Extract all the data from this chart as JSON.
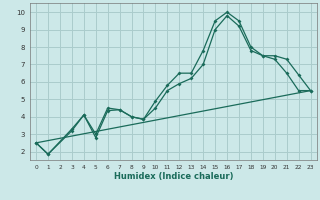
{
  "xlabel": "Humidex (Indice chaleur)",
  "bg_color": "#cce8e8",
  "grid_color": "#aacccc",
  "line_color": "#1a6b5a",
  "xlim": [
    -0.5,
    23.5
  ],
  "ylim": [
    1.5,
    10.5
  ],
  "xticks": [
    0,
    1,
    2,
    3,
    4,
    5,
    6,
    7,
    8,
    9,
    10,
    11,
    12,
    13,
    14,
    15,
    16,
    17,
    18,
    19,
    20,
    21,
    22,
    23
  ],
  "yticks": [
    2,
    3,
    4,
    5,
    6,
    7,
    8,
    9,
    10
  ],
  "line1_x": [
    0,
    1,
    3,
    4,
    5,
    6,
    7,
    8,
    9,
    10,
    11,
    12,
    13,
    14,
    15,
    16,
    17,
    18,
    19,
    20,
    21,
    22,
    23
  ],
  "line1_y": [
    2.5,
    1.85,
    3.2,
    4.1,
    2.8,
    4.35,
    4.4,
    4.0,
    3.85,
    4.9,
    5.8,
    6.5,
    6.5,
    7.8,
    9.5,
    10.0,
    9.5,
    8.0,
    7.5,
    7.3,
    6.5,
    5.5,
    5.5
  ],
  "line2_x": [
    0,
    1,
    3,
    4,
    5,
    6,
    7,
    8,
    9,
    10,
    11,
    12,
    13,
    14,
    15,
    16,
    17,
    18,
    19,
    20,
    21,
    22,
    23
  ],
  "line2_y": [
    2.5,
    1.85,
    3.3,
    4.1,
    3.0,
    4.5,
    4.4,
    4.0,
    3.85,
    4.5,
    5.5,
    5.9,
    6.2,
    7.0,
    9.0,
    9.8,
    9.2,
    7.8,
    7.5,
    7.5,
    7.3,
    6.4,
    5.5
  ],
  "line3_x": [
    0,
    23
  ],
  "line3_y": [
    2.5,
    5.5
  ]
}
